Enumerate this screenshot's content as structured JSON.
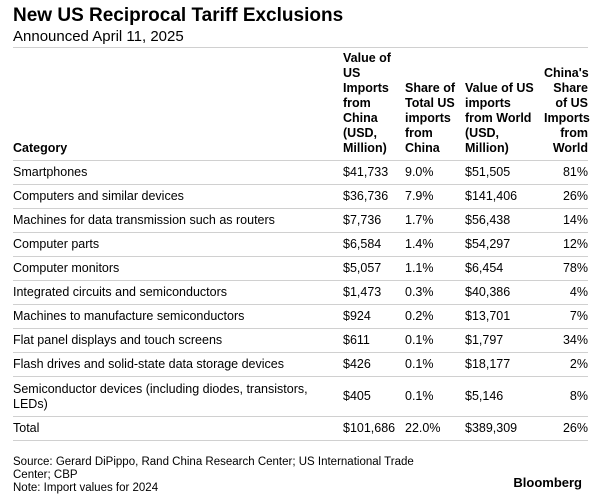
{
  "header": {
    "title": "New US Reciprocal Tariff Exclusions",
    "subtitle": "Announced April 11, 2025"
  },
  "table": {
    "columns": {
      "category": "Category",
      "value_china": "Value of US Imports from China (USD, Million)",
      "share_total": "Share of Total US imports from China",
      "value_world": "Value of US imports from World (USD, Million)",
      "china_share": "China's Share of US Imports from World"
    },
    "rows": [
      {
        "category": "Smartphones",
        "value_china": "$41,733",
        "share_total": "9.0%",
        "value_world": "$51,505",
        "china_share": "81%"
      },
      {
        "category": "Computers and similar devices",
        "value_china": "$36,736",
        "share_total": "7.9%",
        "value_world": "$141,406",
        "china_share": "26%"
      },
      {
        "category": "Machines for data transmission such as routers",
        "value_china": "$7,736",
        "share_total": "1.7%",
        "value_world": "$56,438",
        "china_share": "14%"
      },
      {
        "category": "Computer parts",
        "value_china": "$6,584",
        "share_total": "1.4%",
        "value_world": "$54,297",
        "china_share": "12%"
      },
      {
        "category": "Computer monitors",
        "value_china": "$5,057",
        "share_total": "1.1%",
        "value_world": "$6,454",
        "china_share": "78%"
      },
      {
        "category": "Integrated circuits and semiconductors",
        "value_china": "$1,473",
        "share_total": "0.3%",
        "value_world": "$40,386",
        "china_share": "4%"
      },
      {
        "category": "Machines to manufacture semiconductors",
        "value_china": "$924",
        "share_total": "0.2%",
        "value_world": "$13,701",
        "china_share": "7%"
      },
      {
        "category": "Flat panel displays and touch screens",
        "value_china": "$611",
        "share_total": "0.1%",
        "value_world": "$1,797",
        "china_share": "34%"
      },
      {
        "category": "Flash drives and solid-state data storage devices",
        "value_china": "$426",
        "share_total": "0.1%",
        "value_world": "$18,177",
        "china_share": "2%"
      },
      {
        "category": "Semiconductor devices (including diodes, transistors, LEDs)",
        "value_china": "$405",
        "share_total": "0.1%",
        "value_world": "$5,146",
        "china_share": "8%"
      },
      {
        "category": "Total",
        "value_china": "$101,686",
        "share_total": "22.0%",
        "value_world": "$389,309",
        "china_share": "26%"
      }
    ]
  },
  "chart_data": {
    "type": "table",
    "title": "New US Reciprocal Tariff Exclusions",
    "subtitle": "Announced April 11, 2025",
    "headers": [
      "Category",
      "Value of US Imports from China (USD, Million)",
      "Share of Total US imports from China",
      "Value of US imports from World (USD, Million)",
      "China's Share of US Imports from World"
    ],
    "rows": [
      [
        "Smartphones",
        41733,
        9.0,
        51505,
        81
      ],
      [
        "Computers and similar devices",
        36736,
        7.9,
        141406,
        26
      ],
      [
        "Machines for data transmission such as routers",
        7736,
        1.7,
        56438,
        14
      ],
      [
        "Computer parts",
        6584,
        1.4,
        54297,
        12
      ],
      [
        "Computer monitors",
        5057,
        1.1,
        6454,
        78
      ],
      [
        "Integrated circuits and semiconductors",
        1473,
        0.3,
        40386,
        4
      ],
      [
        "Machines to manufacture semiconductors",
        924,
        0.2,
        13701,
        7
      ],
      [
        "Flat panel displays and touch screens",
        611,
        0.1,
        1797,
        34
      ],
      [
        "Flash drives and solid-state data storage devices",
        426,
        0.1,
        18177,
        2
      ],
      [
        "Semiconductor devices (including diodes, transistors, LEDs)",
        405,
        0.1,
        5146,
        8
      ],
      [
        "Total",
        101686,
        22.0,
        389309,
        26
      ]
    ]
  },
  "footer": {
    "source": "Source: Gerard DiPippo, Rand China Research Center; US International Trade Center; CBP",
    "note": "Note: Import values for 2024",
    "brand": "Bloomberg"
  }
}
